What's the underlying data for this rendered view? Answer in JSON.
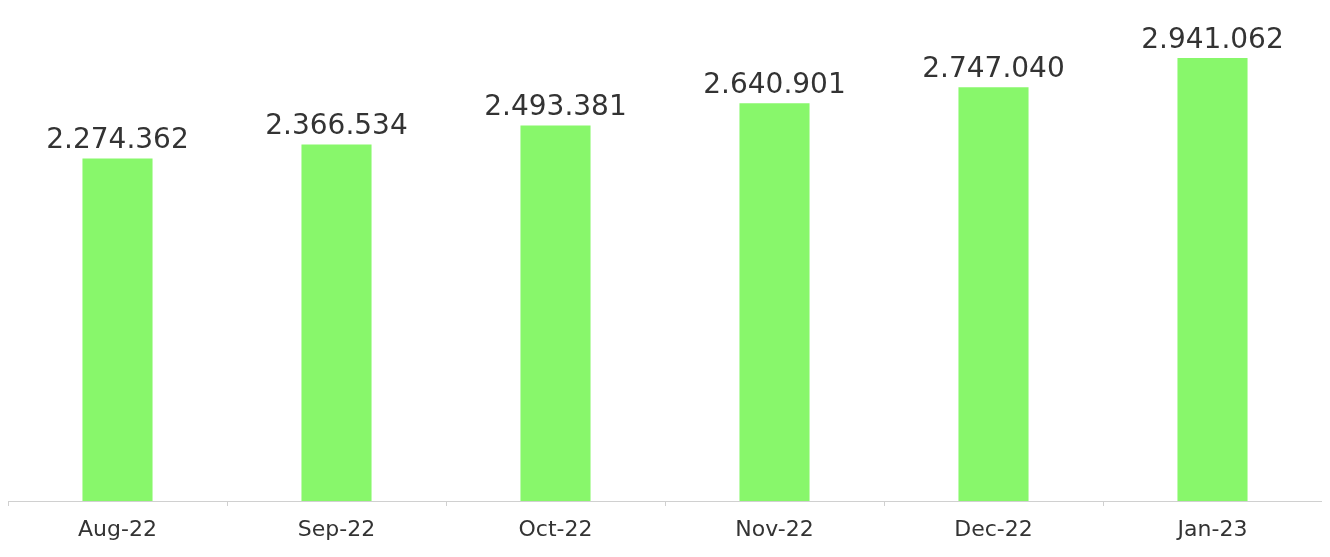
{
  "chart_data": {
    "type": "bar",
    "categories": [
      "Aug-22",
      "Sep-22",
      "Oct-22",
      "Nov-22",
      "Dec-22",
      "Jan-23"
    ],
    "values": [
      2274362,
      2366534,
      2493381,
      2640901,
      2747040,
      2941062
    ],
    "value_labels": [
      "2.274.362",
      "2.366.534",
      "2.493.381",
      "2.640.901",
      "2.747.040",
      "2.941.062"
    ],
    "color": "#88f76b"
  }
}
